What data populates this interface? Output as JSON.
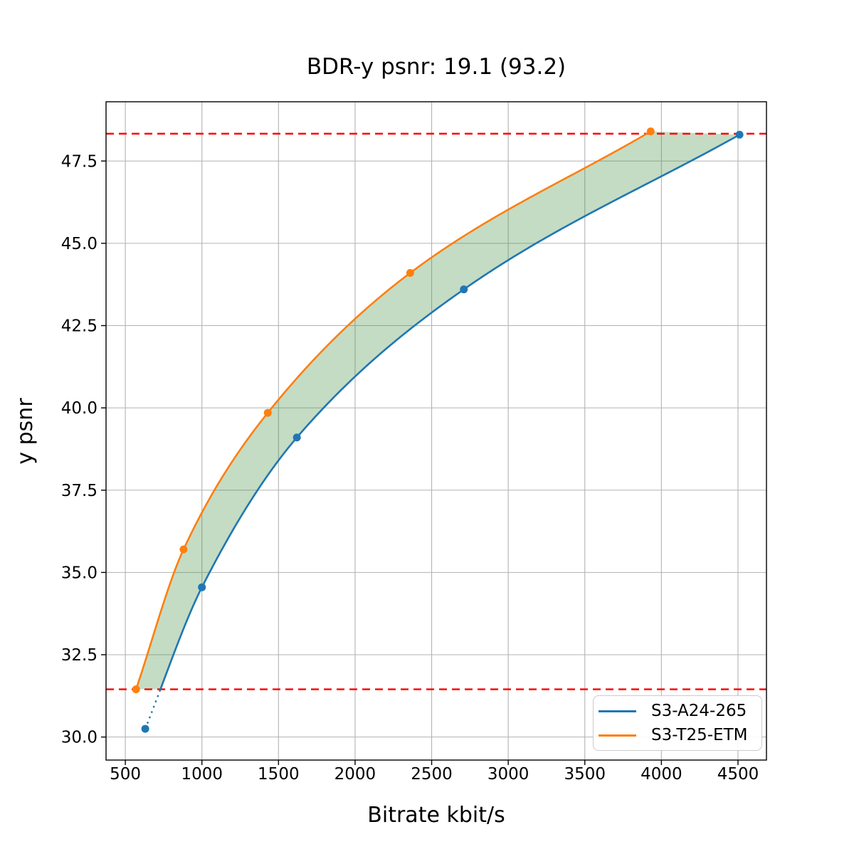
{
  "chart_data": {
    "type": "line",
    "title": "BDR-y psnr: 19.1 (93.2)",
    "xlabel": "Bitrate kbit/s",
    "ylabel": "y psnr",
    "xlim": [
      374,
      4686
    ],
    "ylim": [
      29.3,
      49.3
    ],
    "grid": true,
    "grid_color": "#b3b3b3",
    "background": "#ffffff",
    "legend_position": "lower right",
    "x_ticks": [
      500,
      1000,
      1500,
      2000,
      2500,
      3000,
      3500,
      4000,
      4500
    ],
    "x_tick_labels": [
      "500",
      "1000",
      "1500",
      "2000",
      "2500",
      "3000",
      "3500",
      "4000",
      "4500"
    ],
    "y_ticks": [
      30.0,
      32.5,
      35.0,
      37.5,
      40.0,
      42.5,
      45.0,
      47.5
    ],
    "y_tick_labels": [
      "30.0",
      "32.5",
      "35.0",
      "37.5",
      "40.0",
      "42.5",
      "45.0",
      "47.5"
    ],
    "series": [
      {
        "name": "S3-A24-265",
        "color": "#1f77b4",
        "marker": "circle",
        "x": [
          630,
          1000,
          1620,
          2710,
          4510
        ],
        "y": [
          30.25,
          34.55,
          39.1,
          43.6,
          48.3
        ]
      },
      {
        "name": "S3-T25-ETM",
        "color": "#ff7f0e",
        "marker": "circle",
        "x": [
          570,
          880,
          1430,
          2360,
          3930
        ],
        "y": [
          31.45,
          35.7,
          39.85,
          44.1,
          48.4
        ]
      }
    ],
    "hlines": [
      {
        "y": 48.33,
        "color": "#ff0000",
        "style": "dashed",
        "role": "upper-overlap-bound"
      },
      {
        "y": 31.45,
        "color": "#ff0000",
        "style": "dashed",
        "role": "lower-overlap-bound"
      }
    ],
    "fill_between": {
      "color": "#3c8c3c",
      "alpha": 0.3,
      "description": "shaded BD area between the two rate-distortion curves within the overlap bounds"
    }
  }
}
